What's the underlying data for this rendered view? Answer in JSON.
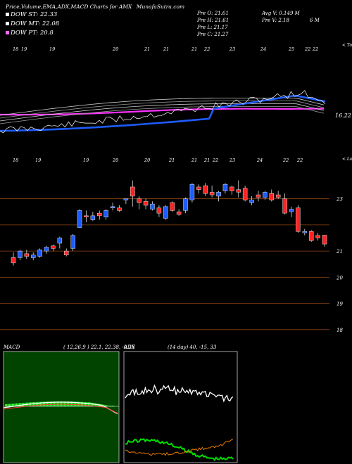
{
  "header": {
    "title": "Price,Volume,EMA,ADX,MACD Charts for AMX",
    "site": "MunafaSutra.com"
  },
  "legend": [
    {
      "label": "DOW ST: 22.33",
      "color": "#ffffff"
    },
    {
      "label": "DOW MT: 22.08",
      "color": "#ffffff"
    },
    {
      "label": "DOW PT: 20.8",
      "color": "#ff66ff"
    }
  ],
  "stats": {
    "open": "Pre   O: 21.61",
    "high": "Pre   H: 21.61",
    "low": "Pre   L: 21.17",
    "close": "Pre   C: 21.27",
    "avg_volume": "Avg V: 0.149 M",
    "pre_volume": "Pre   V: 2.18",
    "pre_volume_unit": "6   M"
  },
  "top_panel": {
    "date_labels": [
      "18",
      "19",
      "19",
      "20",
      "21",
      "21",
      "21",
      "22",
      "23",
      "24",
      "25",
      "22",
      "22"
    ],
    "corner_label": "< Topo",
    "price_label": "16.22"
  },
  "price_panel": {
    "date_labels": [
      "18",
      "19",
      "19",
      "20",
      "20",
      "21",
      "21",
      "21",
      "22",
      "23",
      "24",
      "22",
      "22"
    ],
    "corner_label": "< Lowes",
    "y_ticks": [
      23,
      21,
      20,
      19,
      18
    ],
    "y_tick_labels": [
      "23",
      "21",
      "20",
      "19",
      "18"
    ]
  },
  "chart_data": [
    {
      "type": "line",
      "title": "EMA",
      "series": [
        {
          "name": "",
          "color": "#1e5cff",
          "values": []
        },
        {
          "name": "",
          "color": "#ff33ff",
          "values": []
        }
      ]
    },
    {
      "type": "candlestick",
      "ylim": [
        17.7,
        24.2
      ],
      "candles": [
        {
          "o": 20.55,
          "h": 20.95,
          "l": 20.45,
          "c": 20.75,
          "up": false
        },
        {
          "o": 20.75,
          "h": 21.05,
          "l": 20.65,
          "c": 21.0,
          "up": true
        },
        {
          "o": 20.9,
          "h": 21.05,
          "l": 20.7,
          "c": 20.8,
          "up": false
        },
        {
          "o": 20.85,
          "h": 20.95,
          "l": 20.65,
          "c": 20.75,
          "up": true
        },
        {
          "o": 20.8,
          "h": 21.1,
          "l": 20.75,
          "c": 21.05,
          "up": true
        },
        {
          "o": 21.0,
          "h": 21.2,
          "l": 20.9,
          "c": 21.15,
          "up": true
        },
        {
          "o": 21.1,
          "h": 21.25,
          "l": 21.0,
          "c": 21.2,
          "up": false
        },
        {
          "o": 21.3,
          "h": 21.55,
          "l": 21.1,
          "c": 21.5,
          "up": true
        },
        {
          "o": 21.0,
          "h": 21.1,
          "l": 20.8,
          "c": 20.85,
          "up": false
        },
        {
          "o": 21.1,
          "h": 21.65,
          "l": 21.0,
          "c": 21.6,
          "up": true
        },
        {
          "o": 21.9,
          "h": 22.6,
          "l": 21.9,
          "c": 22.55,
          "up": true
        },
        {
          "o": 22.3,
          "h": 22.55,
          "l": 22.1,
          "c": 22.35,
          "up": false
        },
        {
          "o": 22.35,
          "h": 22.5,
          "l": 22.15,
          "c": 22.2,
          "up": true
        },
        {
          "o": 22.35,
          "h": 22.55,
          "l": 22.2,
          "c": 22.45,
          "up": false
        },
        {
          "o": 22.3,
          "h": 22.6,
          "l": 22.2,
          "c": 22.55,
          "up": true
        },
        {
          "o": 22.65,
          "h": 22.85,
          "l": 22.55,
          "c": 22.7,
          "up": true
        },
        {
          "o": 22.55,
          "h": 22.75,
          "l": 22.5,
          "c": 22.65,
          "up": false
        },
        {
          "o": 22.95,
          "h": 23.0,
          "l": 22.8,
          "c": 23.0,
          "up": true
        },
        {
          "o": 23.1,
          "h": 23.7,
          "l": 22.7,
          "c": 23.45,
          "up": false
        },
        {
          "o": 23.0,
          "h": 23.1,
          "l": 22.6,
          "c": 22.85,
          "up": false
        },
        {
          "o": 22.9,
          "h": 23.0,
          "l": 22.6,
          "c": 22.75,
          "up": false
        },
        {
          "o": 22.6,
          "h": 22.9,
          "l": 22.55,
          "c": 22.8,
          "up": true
        },
        {
          "o": 22.65,
          "h": 22.75,
          "l": 22.3,
          "c": 22.45,
          "up": false
        },
        {
          "o": 22.25,
          "h": 22.75,
          "l": 22.2,
          "c": 22.7,
          "up": true
        },
        {
          "o": 22.55,
          "h": 22.9,
          "l": 22.5,
          "c": 22.85,
          "up": false
        },
        {
          "o": 22.5,
          "h": 22.6,
          "l": 22.35,
          "c": 22.4,
          "up": false
        },
        {
          "o": 22.55,
          "h": 23.05,
          "l": 22.45,
          "c": 23.0,
          "up": true
        },
        {
          "o": 22.95,
          "h": 23.6,
          "l": 22.85,
          "c": 23.55,
          "up": true
        },
        {
          "o": 23.45,
          "h": 23.55,
          "l": 23.2,
          "c": 23.35,
          "up": false
        },
        {
          "o": 23.5,
          "h": 23.6,
          "l": 23.1,
          "c": 23.2,
          "up": false
        },
        {
          "o": 23.25,
          "h": 23.5,
          "l": 23.05,
          "c": 23.15,
          "up": false
        },
        {
          "o": 23.1,
          "h": 23.3,
          "l": 22.9,
          "c": 23.25,
          "up": true
        },
        {
          "o": 23.3,
          "h": 23.6,
          "l": 23.2,
          "c": 23.55,
          "up": true
        },
        {
          "o": 23.3,
          "h": 23.5,
          "l": 23.15,
          "c": 23.45,
          "up": false
        },
        {
          "o": 23.25,
          "h": 23.7,
          "l": 23.05,
          "c": 23.35,
          "up": false
        },
        {
          "o": 23.4,
          "h": 23.5,
          "l": 22.9,
          "c": 22.95,
          "up": false
        },
        {
          "o": 22.95,
          "h": 23.1,
          "l": 22.75,
          "c": 22.85,
          "up": true
        },
        {
          "o": 23.05,
          "h": 23.3,
          "l": 22.9,
          "c": 23.15,
          "up": false
        },
        {
          "o": 23.05,
          "h": 23.3,
          "l": 22.95,
          "c": 23.25,
          "up": true
        },
        {
          "o": 23.2,
          "h": 23.35,
          "l": 22.9,
          "c": 22.95,
          "up": false
        },
        {
          "o": 23.15,
          "h": 23.3,
          "l": 23.0,
          "c": 23.05,
          "up": false
        },
        {
          "o": 23.0,
          "h": 23.2,
          "l": 22.4,
          "c": 22.45,
          "up": false
        },
        {
          "o": 22.5,
          "h": 22.7,
          "l": 22.3,
          "c": 22.6,
          "up": true
        },
        {
          "o": 22.65,
          "h": 22.75,
          "l": 21.7,
          "c": 21.75,
          "up": false
        },
        {
          "o": 21.75,
          "h": 21.85,
          "l": 21.6,
          "c": 21.7,
          "up": true
        },
        {
          "o": 21.75,
          "h": 21.8,
          "l": 21.35,
          "c": 21.4,
          "up": false
        },
        {
          "o": 21.6,
          "h": 21.7,
          "l": 21.4,
          "c": 21.5,
          "up": false
        },
        {
          "o": 21.61,
          "h": 21.61,
          "l": 21.17,
          "c": 21.27,
          "up": false
        }
      ]
    },
    {
      "type": "line",
      "title": "MACD",
      "params": "( 12,26,9 ) 22.1, 22.38, -0.28",
      "series": [
        {
          "name": "",
          "color": "#ffffff",
          "values": []
        },
        {
          "name": "",
          "color": "#ff3333",
          "values": []
        }
      ]
    },
    {
      "type": "line",
      "title": "ADX",
      "params": "(14  day) 40, -15, 33",
      "series": [
        {
          "name": "",
          "color": "#ffffff",
          "values": []
        },
        {
          "name": "",
          "color": "#00dd00",
          "values": []
        },
        {
          "name": "",
          "color": "#ff8800",
          "values": []
        }
      ]
    }
  ]
}
